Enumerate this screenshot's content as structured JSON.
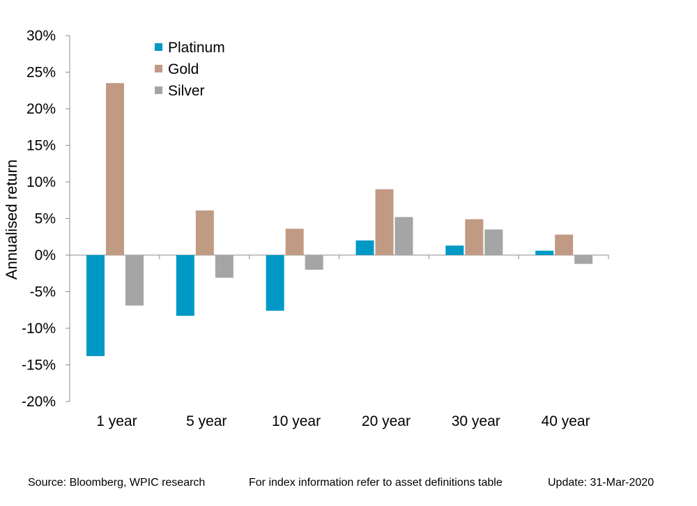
{
  "chart_data": {
    "type": "bar",
    "categories": [
      "1 year",
      "5 year",
      "10 year",
      "20 year",
      "30 year",
      "40 year"
    ],
    "series": [
      {
        "name": "Platinum",
        "color": "#0099c6",
        "values": [
          -13.8,
          -8.3,
          -7.6,
          2.0,
          1.3,
          0.6
        ]
      },
      {
        "name": "Gold",
        "color": "#c19a84",
        "values": [
          23.5,
          6.1,
          3.6,
          9.0,
          4.9,
          2.8
        ]
      },
      {
        "name": "Silver",
        "color": "#a5a5a5",
        "values": [
          -6.9,
          -3.1,
          -2.0,
          5.2,
          3.5,
          -1.2
        ]
      }
    ],
    "ylabel": "Annualised return",
    "xlabel": "",
    "ylim": [
      -20,
      30
    ],
    "yticks": [
      -20,
      -15,
      -10,
      -5,
      0,
      5,
      10,
      15,
      20,
      25,
      30
    ],
    "ytick_format": "percent",
    "grid": false,
    "legend_position": "top-left"
  },
  "footer": {
    "source": "Source: Bloomberg, WPIC research",
    "note": "For index information refer to asset definitions table",
    "update": "Update: 31-Mar-2020"
  }
}
